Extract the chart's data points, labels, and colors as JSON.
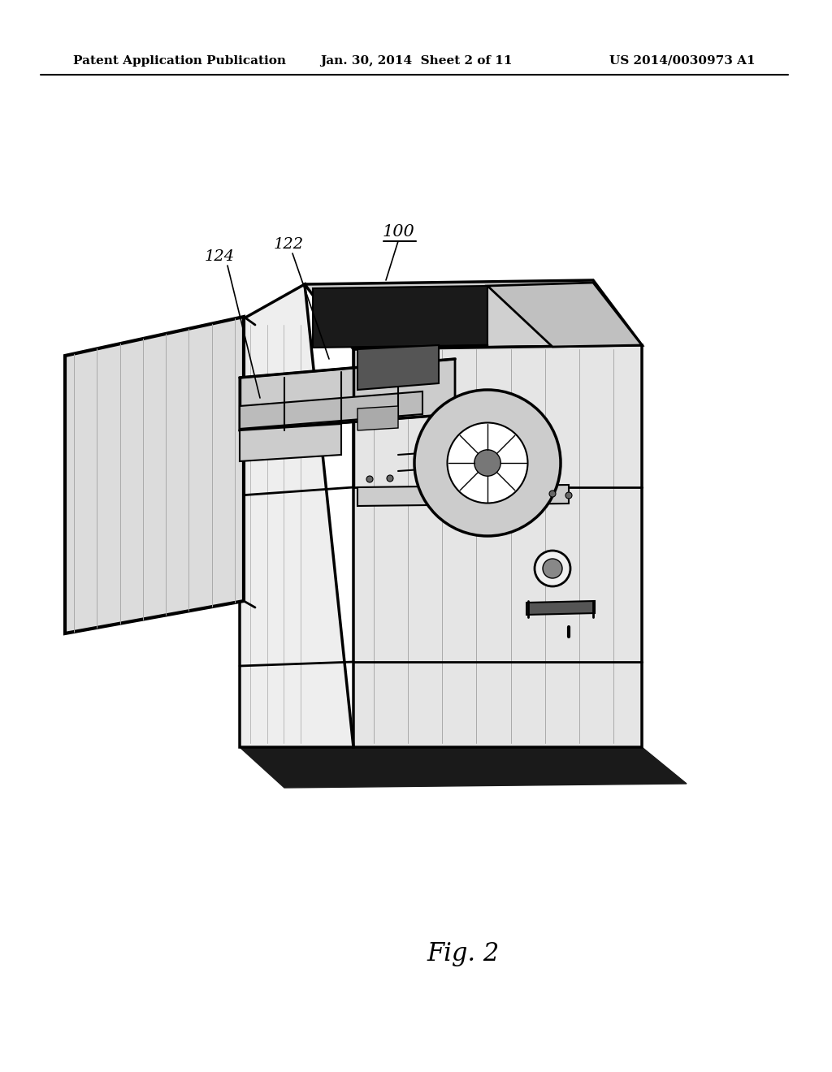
{
  "background_color": "#ffffff",
  "header_left": "Patent Application Publication",
  "header_center": "Jan. 30, 2014  Sheet 2 of 11",
  "header_right": "US 2014/0030973 A1",
  "header_fontsize": 11,
  "fig_label": "Fig. 2",
  "fig_label_fontsize": 22,
  "label_100": "100",
  "label_122": "122",
  "label_124": "124",
  "line_color": "#000000"
}
